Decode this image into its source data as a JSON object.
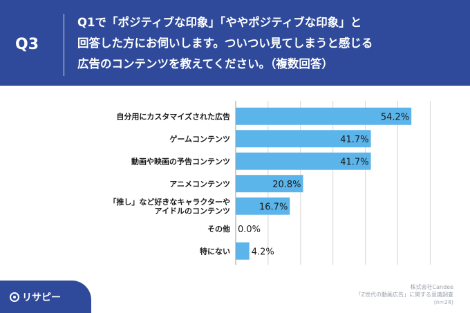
{
  "header": {
    "q_label": "Q3",
    "question_lines": [
      "Q1で「ポジティブな印象」「ややポジティブな印象」と",
      "回答した方にお伺いします。ついつい見てしまうと感じる",
      "広告のコンテンツを教えてください。（複数回答）"
    ]
  },
  "colors": {
    "bar": "#5bb4ea",
    "header_bg": "#2f4a9a",
    "grid": "#d6d6d6"
  },
  "chart_data": {
    "type": "bar",
    "orientation": "horizontal",
    "categories": [
      [
        "自分用にカスタマイズされた広告"
      ],
      [
        "ゲームコンテンツ"
      ],
      [
        "動画や映画の予告コンテンツ"
      ],
      [
        "アニメコンテンツ"
      ],
      [
        "「推し」など好きなキャラクターや",
        "アイドルのコンテンツ"
      ],
      [
        "その他"
      ],
      [
        "特にない"
      ]
    ],
    "values": [
      54.2,
      41.7,
      41.7,
      20.8,
      16.7,
      0.0,
      4.2
    ],
    "value_labels": [
      "54.2%",
      "41.7%",
      "41.7%",
      "20.8%",
      "16.7%",
      "0.0%",
      "4.2%"
    ],
    "xlim": [
      0,
      100
    ],
    "grid": true
  },
  "source": {
    "line1": "株式会社Candee",
    "line2": "「Z世代の動画広告」に関する意識調査",
    "line3": "(n=24)"
  },
  "logo": {
    "text": "リサピー"
  }
}
